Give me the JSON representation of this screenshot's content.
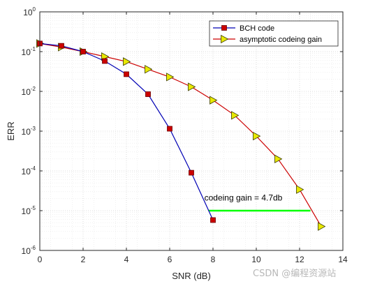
{
  "chart_data": {
    "type": "line",
    "title": "",
    "xlabel": "SNR (dB)",
    "ylabel": "ERR",
    "xlim": [
      0,
      14
    ],
    "ylim": [
      1e-06,
      1
    ],
    "yscale": "log",
    "grid": true,
    "x_ticks": [
      0,
      2,
      4,
      6,
      8,
      10,
      12,
      14
    ],
    "y_ticks": [
      {
        "base": "10",
        "exp": "0",
        "value": 1
      },
      {
        "base": "10",
        "exp": "-1",
        "value": 0.1
      },
      {
        "base": "10",
        "exp": "-2",
        "value": 0.01
      },
      {
        "base": "10",
        "exp": "-3",
        "value": 0.001
      },
      {
        "base": "10",
        "exp": "-4",
        "value": 0.0001
      },
      {
        "base": "10",
        "exp": "-5",
        "value": 1e-05
      },
      {
        "base": "10",
        "exp": "-6",
        "value": 1e-06
      }
    ],
    "legend_position": "top-right",
    "series": [
      {
        "name": "BCH code",
        "color": "#0000b4",
        "marker": "square",
        "marker_color": "#cc0000",
        "x": [
          0,
          1,
          2,
          3,
          4,
          5,
          6,
          7,
          8
        ],
        "y": [
          0.16,
          0.14,
          0.1,
          0.058,
          0.027,
          0.0085,
          0.00115,
          9e-05,
          5.8e-06
        ]
      },
      {
        "name": "asymptotic codeing gain",
        "color": "#cc0000",
        "marker": "triangle-right",
        "marker_color": "#e8e800",
        "x": [
          0,
          1,
          2,
          3,
          4,
          5,
          6,
          7,
          8,
          9,
          10,
          11,
          12,
          13
        ],
        "y": [
          0.16,
          0.13,
          0.1,
          0.075,
          0.056,
          0.036,
          0.023,
          0.013,
          0.006,
          0.0025,
          0.00075,
          0.0002,
          3.4e-05,
          4e-06
        ]
      }
    ],
    "annotations": [
      {
        "text": "codeing gain = 4.7db",
        "x": 7.6,
        "y": 1.8e-05
      },
      {
        "type": "segment",
        "x1": 7.8,
        "x2": 12.5,
        "y": 1e-05,
        "color": "#00ff00"
      }
    ]
  },
  "watermark": "CSDN @编程资源站"
}
